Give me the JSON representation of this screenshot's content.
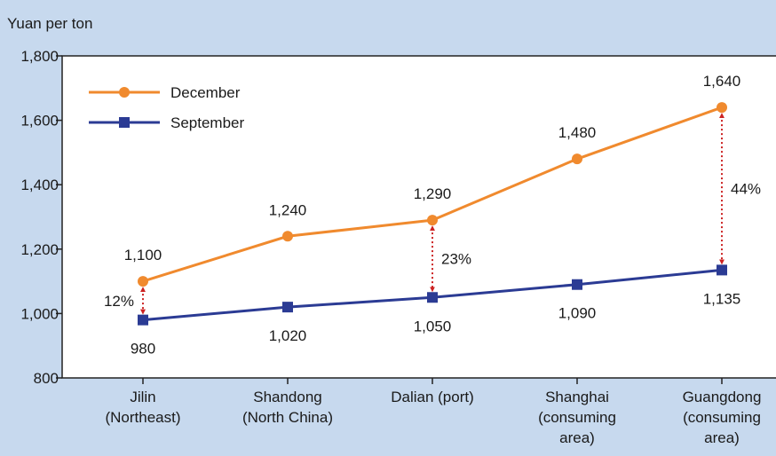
{
  "colors": {
    "background": "#c7d9ee",
    "plot_area": "#ffffff",
    "december": "#f08a2e",
    "september": "#2b3b94",
    "pct_arrows": "#cc2222"
  },
  "chart_data": {
    "type": "line",
    "ylabel": "Yuan per ton",
    "ylim": [
      800,
      1800
    ],
    "yticks": [
      800,
      1000,
      1200,
      1400,
      1600,
      1800
    ],
    "ytick_labels": [
      "800",
      "1,000",
      "1,200",
      "1,400",
      "1,600",
      "1,800"
    ],
    "categories": [
      [
        "Jilin",
        "(Northeast)"
      ],
      [
        "Shandong",
        "(North China)"
      ],
      [
        "Dalian (port)"
      ],
      [
        "Shanghai",
        "(consuming",
        "area)"
      ],
      [
        "Guangdong",
        "(consuming",
        "area)"
      ]
    ],
    "series": [
      {
        "name": "December",
        "marker": "circle",
        "values": [
          1100,
          1240,
          1290,
          1480,
          1640
        ],
        "labels": [
          "1,100",
          "1,240",
          "1,290",
          "1,480",
          "1,640"
        ]
      },
      {
        "name": "September",
        "marker": "square",
        "values": [
          980,
          1020,
          1050,
          1090,
          1135
        ],
        "labels": [
          "980",
          "1,020",
          "1,050",
          "1,090",
          "1,135"
        ]
      }
    ],
    "legend_position": "top-left",
    "grid": false,
    "annotations": [
      {
        "category_index": 0,
        "text": "12%"
      },
      {
        "category_index": 2,
        "text": "23%"
      },
      {
        "category_index": 4,
        "text": "44%"
      }
    ]
  }
}
